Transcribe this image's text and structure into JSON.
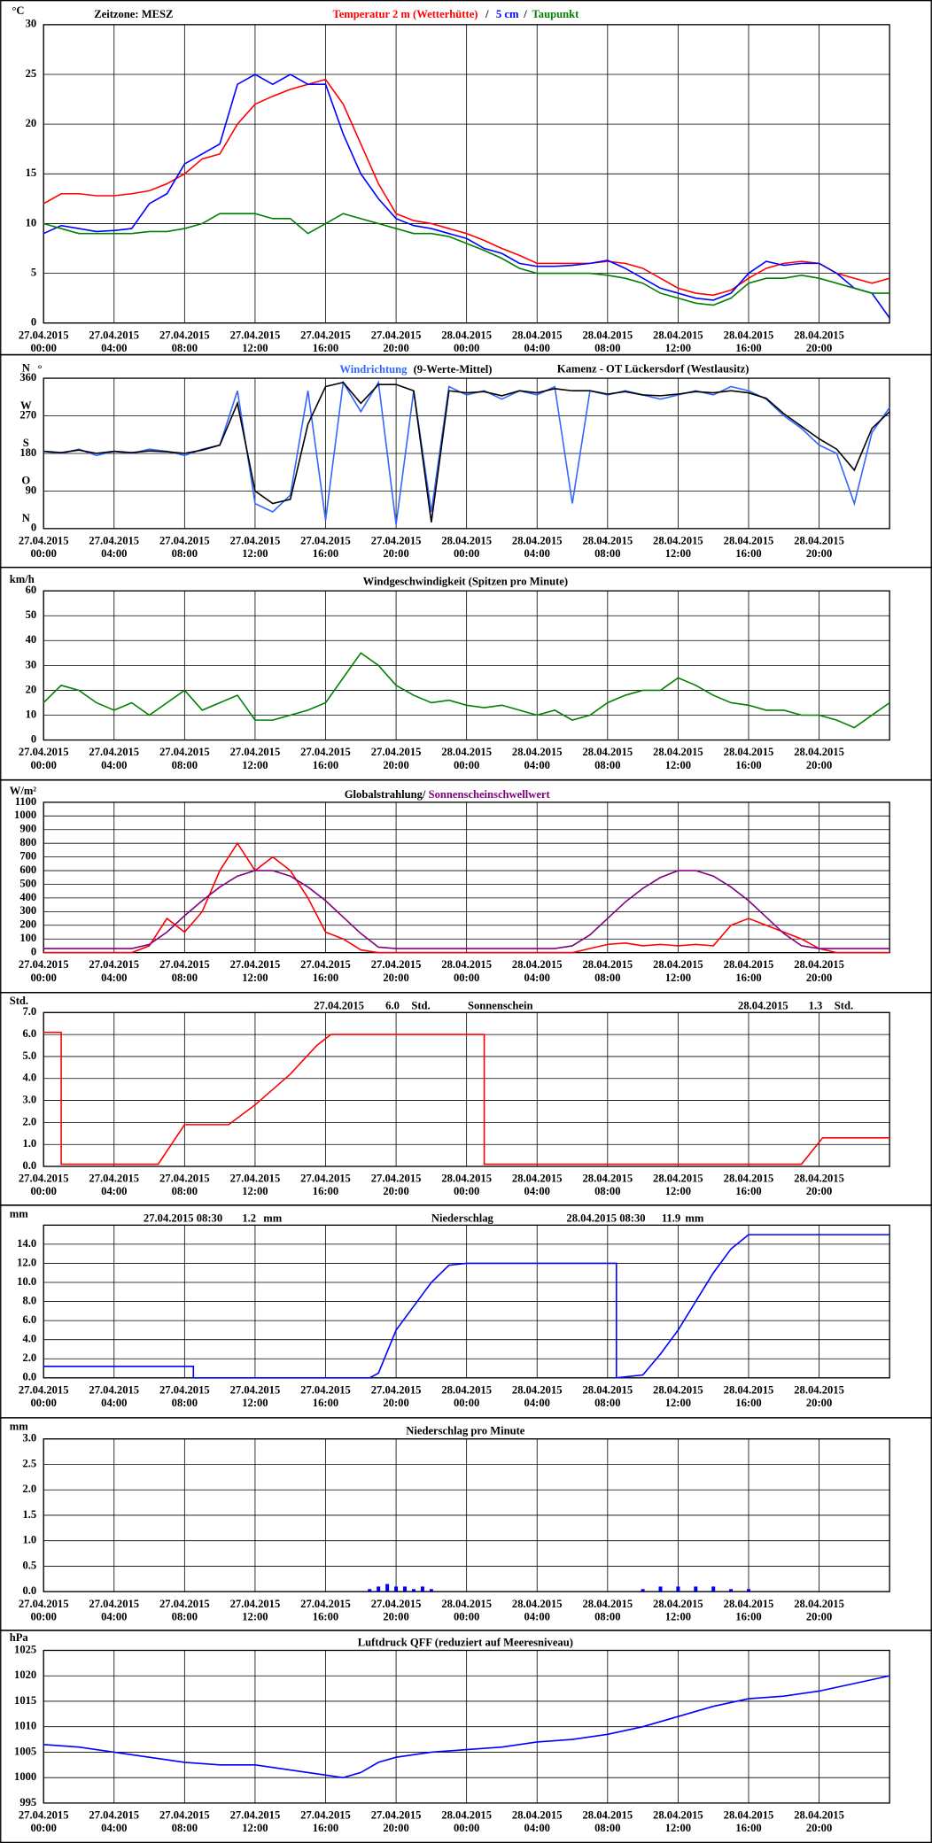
{
  "x_axis": {
    "xlim": [
      0,
      48
    ],
    "xticks": [
      {
        "value": 0,
        "label": "27.04.2015\n00:00"
      },
      {
        "value": 4,
        "label": "27.04.2015\n04:00"
      },
      {
        "value": 8,
        "label": "27.04.2015\n08:00"
      },
      {
        "value": 12,
        "label": "27.04.2015\n12:00"
      },
      {
        "value": 16,
        "label": "27.04.2015\n16:00"
      },
      {
        "value": 20,
        "label": "27.04.2015\n20:00"
      },
      {
        "value": 24,
        "label": "28.04.2015\n00:00"
      },
      {
        "value": 28,
        "label": "28.04.2015\n04:00"
      },
      {
        "value": 32,
        "label": "28.04.2015\n08:00"
      },
      {
        "value": 36,
        "label": "28.04.2015\n12:00"
      },
      {
        "value": 40,
        "label": "28.04.2015\n16:00"
      },
      {
        "value": 44,
        "label": "28.04.2015\n20:00"
      }
    ]
  },
  "chart_data": [
    {
      "type": "line",
      "unit": "°C",
      "timezone": "Zeitzone: MESZ",
      "separator": "/",
      "x": [
        0,
        1,
        2,
        3,
        4,
        5,
        6,
        7,
        8,
        9,
        10,
        11,
        12,
        13,
        14,
        15,
        16,
        17,
        18,
        19,
        20,
        21,
        22,
        23,
        24,
        25,
        26,
        27,
        28,
        29,
        30,
        31,
        32,
        33,
        34,
        35,
        36,
        37,
        38,
        39,
        40,
        41,
        42,
        43,
        44,
        45,
        46,
        47,
        48
      ],
      "ylim": [
        0,
        30
      ],
      "yticks": [
        0,
        5,
        10,
        15,
        20,
        25,
        30
      ],
      "grid": true,
      "series": [
        {
          "name": "Temperatur 2 m (Wetterhütte)",
          "color": "#ff0000",
          "values": [
            12,
            13,
            13,
            12.8,
            12.8,
            13,
            13.3,
            14,
            15,
            16.5,
            17,
            20,
            22,
            22.8,
            23.5,
            24,
            24.5,
            22,
            18,
            14,
            11,
            10.3,
            10,
            9.5,
            9,
            8.3,
            7.5,
            6.8,
            6,
            6,
            6,
            6,
            6.2,
            6,
            5.5,
            4.5,
            3.5,
            3,
            2.8,
            3.3,
            4.5,
            5.5,
            6,
            6.2,
            6,
            5,
            4.5,
            4,
            4.5
          ]
        },
        {
          "name": "5 cm",
          "color": "#0000ff",
          "values": [
            9,
            9.8,
            9.5,
            9.2,
            9.3,
            9.5,
            12,
            13,
            16,
            17,
            18,
            24,
            25,
            24,
            25,
            24,
            24,
            19,
            15,
            12.5,
            10.5,
            9.8,
            9.5,
            9,
            8.5,
            7.5,
            7,
            6,
            5.7,
            5.7,
            5.8,
            6,
            6.3,
            5.5,
            4.5,
            3.5,
            3,
            2.5,
            2.3,
            3,
            5,
            6.2,
            5.8,
            6,
            6,
            5,
            3.5,
            3,
            0.5
          ]
        },
        {
          "name": "Taupunkt",
          "color": "#008000",
          "values": [
            10,
            9.5,
            9,
            9,
            9,
            9,
            9.2,
            9.2,
            9.5,
            10,
            11,
            11,
            11,
            10.5,
            10.5,
            9,
            10,
            11,
            10.5,
            10,
            9.5,
            9,
            9,
            8.7,
            8,
            7.3,
            6.5,
            5.5,
            5,
            5,
            5,
            5,
            4.8,
            4.5,
            4,
            3,
            2.5,
            2,
            1.8,
            2.5,
            4,
            4.5,
            4.5,
            4.8,
            4.5,
            4,
            3.5,
            3,
            3
          ]
        }
      ]
    },
    {
      "type": "line",
      "unit": "°",
      "title": "Kamenz - OT Lückersdorf (Westlausitz)",
      "compass": [
        {
          "value": 360,
          "label": "N"
        },
        {
          "value": 270,
          "label": "W"
        },
        {
          "value": 180,
          "label": "S"
        },
        {
          "value": 90,
          "label": "O"
        },
        {
          "value": 0,
          "label": "N"
        }
      ],
      "x": [
        0,
        1,
        2,
        3,
        4,
        5,
        6,
        7,
        8,
        9,
        10,
        11,
        12,
        13,
        14,
        15,
        16,
        17,
        18,
        19,
        20,
        21,
        22,
        23,
        24,
        25,
        26,
        27,
        28,
        29,
        30,
        31,
        32,
        33,
        34,
        35,
        36,
        37,
        38,
        39,
        40,
        41,
        42,
        43,
        44,
        45,
        46,
        47,
        48
      ],
      "ylim": [
        0,
        360
      ],
      "yticks": [
        0,
        90,
        180,
        270,
        360
      ],
      "grid": true,
      "series": [
        {
          "name": "Windrichtung",
          "color": "#3366ff",
          "values": [
            185,
            180,
            190,
            175,
            185,
            180,
            190,
            185,
            175,
            190,
            200,
            330,
            60,
            40,
            80,
            330,
            20,
            350,
            280,
            350,
            10,
            330,
            40,
            340,
            320,
            330,
            310,
            330,
            320,
            340,
            60,
            330,
            320,
            330,
            320,
            310,
            320,
            330,
            320,
            340,
            330,
            310,
            270,
            240,
            200,
            180,
            60,
            230,
            290
          ]
        },
        {
          "name": "(9-Werte-Mittel)",
          "color": "#000000",
          "values": [
            185,
            182,
            188,
            180,
            185,
            182,
            186,
            184,
            180,
            188,
            200,
            300,
            90,
            60,
            70,
            250,
            340,
            350,
            300,
            345,
            345,
            330,
            15,
            330,
            325,
            328,
            318,
            330,
            325,
            335,
            330,
            330,
            322,
            328,
            320,
            318,
            322,
            328,
            325,
            330,
            325,
            312,
            275,
            245,
            215,
            190,
            140,
            240,
            280
          ]
        }
      ]
    },
    {
      "type": "line",
      "unit": "km/h",
      "title": "Windgeschwindigkeit (Spitzen pro Minute)",
      "x": [
        0,
        1,
        2,
        3,
        4,
        5,
        6,
        7,
        8,
        9,
        10,
        11,
        12,
        13,
        14,
        15,
        16,
        17,
        18,
        19,
        20,
        21,
        22,
        23,
        24,
        25,
        26,
        27,
        28,
        29,
        30,
        31,
        32,
        33,
        34,
        35,
        36,
        37,
        38,
        39,
        40,
        41,
        42,
        43,
        44,
        45,
        46,
        47,
        48
      ],
      "ylim": [
        0,
        60
      ],
      "yticks": [
        0,
        10,
        20,
        30,
        40,
        50,
        60
      ],
      "grid": true,
      "series": [
        {
          "color": "#008000",
          "values": [
            15,
            22,
            20,
            15,
            12,
            15,
            10,
            15,
            20,
            12,
            15,
            18,
            8,
            8,
            10,
            12,
            15,
            25,
            35,
            30,
            22,
            18,
            15,
            16,
            14,
            13,
            14,
            12,
            10,
            12,
            8,
            10,
            15,
            18,
            20,
            20,
            25,
            22,
            18,
            15,
            14,
            12,
            12,
            10,
            10,
            8,
            5,
            10,
            15
          ]
        }
      ]
    },
    {
      "type": "line",
      "unit": "W/m²",
      "title": "Globalstrahlung/",
      "x": [
        0,
        1,
        2,
        3,
        4,
        5,
        6,
        7,
        8,
        9,
        10,
        11,
        12,
        13,
        14,
        15,
        16,
        17,
        18,
        19,
        20,
        21,
        22,
        23,
        24,
        25,
        26,
        27,
        28,
        29,
        30,
        31,
        32,
        33,
        34,
        35,
        36,
        37,
        38,
        39,
        40,
        41,
        42,
        43,
        44,
        45,
        46,
        47,
        48
      ],
      "ylim": [
        0,
        1100
      ],
      "yticks": [
        0,
        100,
        200,
        300,
        400,
        500,
        600,
        700,
        800,
        900,
        1000,
        1100
      ],
      "grid": true,
      "series": [
        {
          "color": "#ff0000",
          "values": [
            0,
            0,
            0,
            0,
            0,
            0,
            50,
            250,
            150,
            300,
            600,
            800,
            600,
            700,
            600,
            400,
            150,
            100,
            20,
            0,
            0,
            0,
            0,
            0,
            0,
            0,
            0,
            0,
            0,
            0,
            0,
            30,
            60,
            70,
            50,
            60,
            50,
            60,
            50,
            200,
            250,
            200,
            150,
            100,
            30,
            0,
            0,
            0,
            0
          ]
        },
        {
          "name": "Sonnenscheinschwellwert",
          "color": "#800080",
          "values": [
            30,
            30,
            30,
            30,
            30,
            30,
            60,
            150,
            270,
            380,
            480,
            560,
            600,
            600,
            560,
            480,
            380,
            260,
            140,
            40,
            30,
            30,
            30,
            30,
            30,
            30,
            30,
            30,
            30,
            30,
            50,
            130,
            250,
            370,
            470,
            550,
            600,
            600,
            560,
            480,
            380,
            260,
            140,
            50,
            30,
            30,
            30,
            30,
            30
          ]
        }
      ]
    },
    {
      "type": "line",
      "unit": "Std.",
      "title": "Sonnenschein",
      "annotations": [
        "27.04.2015",
        "6.0",
        "Std.",
        "28.04.2015",
        "1.3",
        "Std."
      ],
      "x": [
        0,
        1,
        1,
        6.5,
        8,
        10.5,
        12,
        14,
        15.5,
        16.3,
        25,
        25,
        43,
        44.2,
        48
      ],
      "ylim": [
        0,
        7
      ],
      "yticks": [
        {
          "value": 0,
          "label": "0.0"
        },
        {
          "value": 1,
          "label": "1.0"
        },
        {
          "value": 2,
          "label": "2.0"
        },
        {
          "value": 3,
          "label": "3.0"
        },
        {
          "value": 4,
          "label": "4.0"
        },
        {
          "value": 5,
          "label": "5.0"
        },
        {
          "value": 6,
          "label": "6.0"
        },
        {
          "value": 7,
          "label": "7.0"
        }
      ],
      "grid": true,
      "series": [
        {
          "color": "#ff0000",
          "values": [
            6.1,
            6.1,
            0.1,
            0.1,
            1.9,
            1.9,
            2.8,
            4.2,
            5.5,
            6.0,
            6.0,
            0.1,
            0.1,
            1.3,
            1.3
          ]
        }
      ]
    },
    {
      "type": "line",
      "unit": "mm",
      "title": "Niederschlag",
      "annotations": [
        "27.04.2015 08:30",
        "1.2",
        "mm",
        "28.04.2015 08:30",
        "11.9",
        "mm"
      ],
      "x": [
        0,
        8.5,
        8.5,
        18.5,
        19,
        20,
        21,
        22,
        23,
        24,
        32.5,
        32.5,
        34,
        35,
        36,
        37,
        38,
        39,
        40,
        48
      ],
      "ylim": [
        0,
        16
      ],
      "yticks": [
        {
          "value": 0,
          "label": "0.0"
        },
        {
          "value": 2,
          "label": "2.0"
        },
        {
          "value": 4,
          "label": "4.0"
        },
        {
          "value": 6,
          "label": "6.0"
        },
        {
          "value": 8,
          "label": "8.0"
        },
        {
          "value": 10,
          "label": "10.0"
        },
        {
          "value": 12,
          "label": "12.0"
        },
        {
          "value": 14,
          "label": "14.0"
        }
      ],
      "grid": true,
      "series": [
        {
          "color": "#0000ff",
          "values": [
            1.2,
            1.2,
            0,
            0,
            0.5,
            5,
            7.5,
            10,
            11.8,
            12,
            12,
            0,
            0.3,
            2.5,
            5,
            8,
            11,
            13.5,
            15,
            15
          ]
        }
      ]
    },
    {
      "type": "bar",
      "unit": "mm",
      "title": "Niederschlag pro Minute",
      "x": [
        18.5,
        19,
        19.5,
        20,
        20.5,
        21,
        21.5,
        22,
        34,
        35,
        36,
        37,
        38,
        39,
        40
      ],
      "ylim": [
        0,
        3
      ],
      "yticks": [
        {
          "value": 0,
          "label": "0.0"
        },
        {
          "value": 0.5,
          "label": "0.5"
        },
        {
          "value": 1,
          "label": "1.0"
        },
        {
          "value": 1.5,
          "label": "1.5"
        },
        {
          "value": 2,
          "label": "2.0"
        },
        {
          "value": 2.5,
          "label": "2.5"
        },
        {
          "value": 3,
          "label": "3.0"
        }
      ],
      "grid": true,
      "series": [
        {
          "color": "#0000ff",
          "values": [
            0.05,
            0.1,
            0.15,
            0.1,
            0.1,
            0.05,
            0.1,
            0.05,
            0.05,
            0.1,
            0.1,
            0.1,
            0.1,
            0.05,
            0.05
          ]
        }
      ]
    },
    {
      "type": "line",
      "unit": "hPa",
      "title": "Luftdruck QFF (reduziert auf Meeresniveau)",
      "x": [
        0,
        2,
        4,
        6,
        8,
        10,
        12,
        14,
        16,
        17,
        18,
        19,
        20,
        22,
        24,
        26,
        28,
        30,
        32,
        34,
        36,
        38,
        40,
        42,
        44,
        46,
        48
      ],
      "ylim": [
        995,
        1025
      ],
      "yticks": [
        995,
        1000,
        1005,
        1010,
        1015,
        1020,
        1025
      ],
      "grid": true,
      "series": [
        {
          "color": "#0000ff",
          "values": [
            1006.5,
            1006,
            1005,
            1004,
            1003,
            1002.5,
            1002.5,
            1001.5,
            1000.5,
            1000,
            1001,
            1003,
            1004,
            1005,
            1005.5,
            1006,
            1007,
            1007.5,
            1008.5,
            1010,
            1012,
            1014,
            1015.5,
            1016,
            1017,
            1018.5,
            1020
          ]
        }
      ]
    }
  ]
}
